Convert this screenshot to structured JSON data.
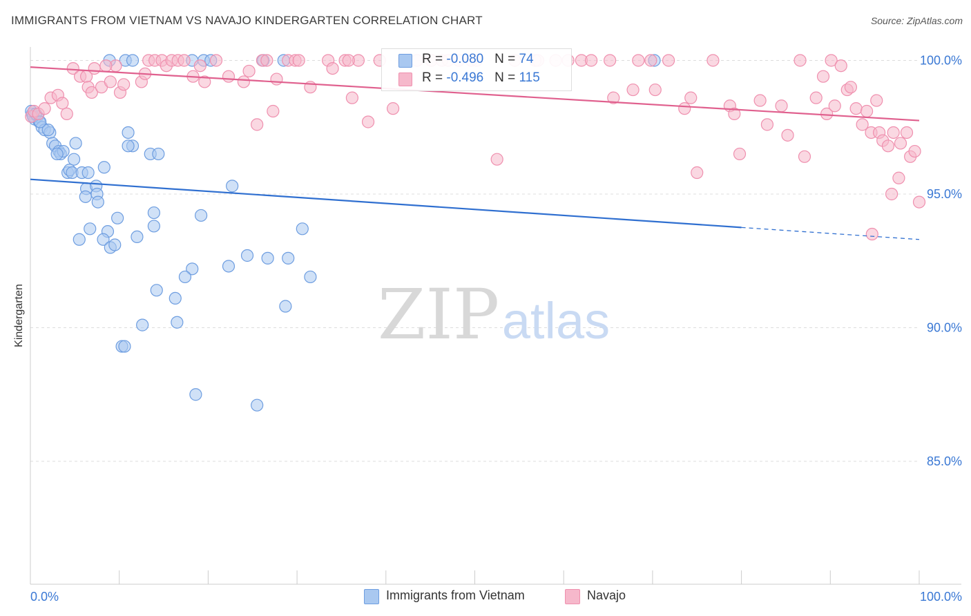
{
  "title": "IMMIGRANTS FROM VIETNAM VS NAVAJO KINDERGARTEN CORRELATION CHART",
  "source": "Source: ZipAtlas.com",
  "watermark": {
    "zip": "ZIP",
    "atlas": "atlas"
  },
  "colors": {
    "vietnam_fill": "#a9c8f0",
    "vietnam_stroke": "#6d9de0",
    "vietnam_line": "#2f6fd0",
    "navajo_fill": "#f6b8cb",
    "navajo_stroke": "#ef8fae",
    "navajo_line": "#e0608e",
    "tick_text": "#3a78d4",
    "grid": "#dcdcdc"
  },
  "legend": {
    "rows": [
      {
        "r_label": "R = ",
        "r_value": "-0.080",
        "n_label": "N = ",
        "n_value": "74",
        "color": "#a9c8f0"
      },
      {
        "r_label": "R = ",
        "r_value": "-0.496",
        "n_label": "N = ",
        "n_value": "115",
        "color": "#f6b8cb"
      }
    ]
  },
  "bottom_legend": [
    {
      "label": "Immigrants from Vietnam",
      "color": "#a9c8f0"
    },
    {
      "label": "Navajo",
      "color": "#f6b8cb"
    }
  ],
  "chart_data": {
    "type": "scatter",
    "title": "IMMIGRANTS FROM VIETNAM VS NAVAJO KINDERGARTEN CORRELATION CHART",
    "xlabel": "",
    "ylabel": "Kindergarten",
    "xlim": [
      0,
      100
    ],
    "ylim": [
      80.4,
      100.4
    ],
    "x_tick_labels": [
      "0.0%",
      "100.0%"
    ],
    "y_ticks": [
      85,
      90,
      95,
      100
    ],
    "y_tick_labels": [
      "85.0%",
      "90.0%",
      "95.0%",
      "100.0%"
    ],
    "grid": true,
    "legend_position": "top-center",
    "series": [
      {
        "name": "Immigrants from Vietnam",
        "r": -0.08,
        "n": 74,
        "trend": {
          "x_start": 0,
          "y_start": 95.55,
          "x_solid_end": 80,
          "y_solid_end": 93.75,
          "x_end": 100,
          "y_end": 93.3
        },
        "points": [
          [
            0.2,
            98.0
          ],
          [
            0.5,
            97.8
          ],
          [
            0.8,
            97.9
          ],
          [
            1.0,
            97.7
          ],
          [
            1.3,
            97.5
          ],
          [
            1.6,
            97.4
          ],
          [
            2.2,
            97.3
          ],
          [
            2.5,
            96.9
          ],
          [
            2.8,
            96.8
          ],
          [
            3.2,
            96.6
          ],
          [
            3.4,
            96.5
          ],
          [
            3.7,
            96.6
          ],
          [
            5.1,
            96.9
          ],
          [
            4.2,
            95.8
          ],
          [
            4.4,
            95.9
          ],
          [
            4.7,
            95.8
          ],
          [
            5.8,
            95.8
          ],
          [
            6.5,
            95.8
          ],
          [
            8.3,
            96.0
          ],
          [
            6.3,
            95.2
          ],
          [
            7.4,
            95.3
          ],
          [
            7.5,
            95.0
          ],
          [
            6.2,
            94.9
          ],
          [
            7.6,
            94.7
          ],
          [
            8.7,
            93.6
          ],
          [
            8.2,
            93.3
          ],
          [
            9.0,
            93.0
          ],
          [
            9.5,
            93.1
          ],
          [
            5.5,
            93.3
          ],
          [
            6.7,
            93.7
          ],
          [
            9.8,
            94.1
          ],
          [
            11.0,
            97.3
          ],
          [
            11.5,
            96.8
          ],
          [
            11.0,
            96.8
          ],
          [
            13.5,
            96.5
          ],
          [
            14.4,
            96.5
          ],
          [
            13.9,
            94.3
          ],
          [
            13.9,
            93.8
          ],
          [
            12.0,
            93.4
          ],
          [
            19.2,
            94.2
          ],
          [
            22.7,
            95.3
          ],
          [
            24.4,
            92.7
          ],
          [
            26.7,
            92.6
          ],
          [
            29.0,
            92.6
          ],
          [
            30.6,
            93.7
          ],
          [
            31.5,
            91.9
          ],
          [
            22.3,
            92.3
          ],
          [
            18.2,
            92.2
          ],
          [
            17.4,
            91.9
          ],
          [
            14.2,
            91.4
          ],
          [
            16.3,
            91.1
          ],
          [
            16.5,
            90.2
          ],
          [
            12.6,
            90.1
          ],
          [
            28.7,
            90.8
          ],
          [
            10.3,
            89.3
          ],
          [
            10.6,
            89.3
          ],
          [
            18.6,
            87.5
          ],
          [
            25.5,
            87.1
          ],
          [
            8.9,
            100.0
          ],
          [
            10.7,
            100.0
          ],
          [
            11.5,
            100.0
          ],
          [
            18.2,
            100.0
          ],
          [
            19.5,
            100.0
          ],
          [
            20.3,
            100.0
          ],
          [
            26.2,
            100.0
          ],
          [
            28.5,
            100.0
          ],
          [
            70.2,
            100.0
          ],
          [
            0.1,
            98.1
          ],
          [
            0.3,
            97.9
          ],
          [
            0.6,
            98.0
          ],
          [
            2.0,
            97.4
          ],
          [
            4.9,
            96.3
          ],
          [
            3.0,
            96.5
          ],
          [
            1.1,
            97.7
          ]
        ]
      },
      {
        "name": "Navajo",
        "r": -0.496,
        "n": 115,
        "trend": {
          "x_start": 0,
          "y_start": 99.75,
          "x_end": 100,
          "y_end": 97.75
        },
        "points": [
          [
            0.1,
            97.9
          ],
          [
            0.4,
            98.1
          ],
          [
            0.9,
            98.0
          ],
          [
            1.6,
            98.2
          ],
          [
            2.3,
            98.6
          ],
          [
            3.1,
            98.7
          ],
          [
            3.6,
            98.4
          ],
          [
            4.1,
            98.0
          ],
          [
            4.8,
            99.7
          ],
          [
            5.6,
            99.4
          ],
          [
            6.3,
            99.4
          ],
          [
            6.5,
            99.0
          ],
          [
            6.9,
            98.8
          ],
          [
            7.2,
            99.7
          ],
          [
            8.0,
            99.0
          ],
          [
            9.0,
            99.2
          ],
          [
            9.6,
            99.8
          ],
          [
            10.1,
            98.8
          ],
          [
            10.5,
            99.1
          ],
          [
            12.5,
            99.2
          ],
          [
            12.9,
            99.5
          ],
          [
            13.3,
            100.0
          ],
          [
            14.0,
            100.0
          ],
          [
            14.8,
            100.0
          ],
          [
            15.3,
            99.8
          ],
          [
            15.9,
            100.0
          ],
          [
            16.6,
            100.0
          ],
          [
            17.3,
            100.0
          ],
          [
            18.3,
            99.4
          ],
          [
            19.1,
            99.8
          ],
          [
            19.6,
            99.2
          ],
          [
            20.9,
            100.0
          ],
          [
            22.3,
            99.4
          ],
          [
            24.0,
            99.2
          ],
          [
            24.6,
            99.6
          ],
          [
            25.5,
            97.6
          ],
          [
            26.1,
            100.0
          ],
          [
            26.6,
            100.0
          ],
          [
            27.3,
            98.1
          ],
          [
            27.7,
            99.3
          ],
          [
            29.0,
            100.0
          ],
          [
            29.8,
            100.0
          ],
          [
            31.5,
            99.0
          ],
          [
            33.5,
            100.0
          ],
          [
            34.0,
            99.7
          ],
          [
            35.4,
            100.0
          ],
          [
            36.2,
            98.6
          ],
          [
            36.9,
            100.0
          ],
          [
            38.0,
            97.7
          ],
          [
            39.3,
            100.0
          ],
          [
            40.8,
            98.2
          ],
          [
            42.0,
            100.0
          ],
          [
            43.5,
            100.0
          ],
          [
            45.1,
            100.0
          ],
          [
            46.3,
            100.0
          ],
          [
            47.0,
            100.0
          ],
          [
            48.2,
            100.0
          ],
          [
            49.6,
            100.0
          ],
          [
            50.2,
            100.0
          ],
          [
            52.5,
            96.3
          ],
          [
            54.5,
            100.0
          ],
          [
            56.8,
            100.0
          ],
          [
            59.1,
            100.0
          ],
          [
            60.5,
            100.0
          ],
          [
            62.0,
            100.0
          ],
          [
            63.1,
            100.0
          ],
          [
            65.2,
            100.0
          ],
          [
            65.6,
            98.6
          ],
          [
            67.8,
            98.9
          ],
          [
            68.4,
            100.0
          ],
          [
            69.8,
            100.0
          ],
          [
            70.3,
            98.9
          ],
          [
            71.8,
            100.0
          ],
          [
            73.6,
            98.2
          ],
          [
            74.3,
            98.6
          ],
          [
            75.0,
            95.8
          ],
          [
            76.8,
            100.0
          ],
          [
            78.7,
            98.3
          ],
          [
            79.2,
            98.0
          ],
          [
            79.8,
            96.5
          ],
          [
            82.1,
            98.5
          ],
          [
            82.9,
            97.6
          ],
          [
            84.5,
            98.3
          ],
          [
            85.2,
            97.2
          ],
          [
            86.6,
            100.0
          ],
          [
            87.1,
            96.4
          ],
          [
            88.4,
            98.6
          ],
          [
            89.2,
            99.4
          ],
          [
            89.6,
            98.0
          ],
          [
            90.1,
            100.0
          ],
          [
            90.5,
            98.3
          ],
          [
            91.2,
            99.8
          ],
          [
            91.9,
            98.9
          ],
          [
            92.3,
            99.0
          ],
          [
            92.9,
            98.2
          ],
          [
            93.6,
            97.6
          ],
          [
            94.1,
            98.1
          ],
          [
            94.6,
            97.3
          ],
          [
            95.2,
            98.5
          ],
          [
            95.5,
            97.3
          ],
          [
            95.9,
            97.0
          ],
          [
            96.5,
            96.8
          ],
          [
            97.1,
            97.3
          ],
          [
            97.7,
            95.6
          ],
          [
            97.9,
            96.9
          ],
          [
            98.6,
            97.3
          ],
          [
            99.0,
            96.4
          ],
          [
            99.5,
            96.6
          ],
          [
            100.0,
            94.7
          ],
          [
            94.7,
            93.5
          ],
          [
            96.9,
            95.0
          ],
          [
            8.5,
            99.8
          ],
          [
            30.2,
            100.0
          ],
          [
            57.1,
            100.0
          ],
          [
            35.8,
            100.0
          ]
        ]
      }
    ]
  }
}
